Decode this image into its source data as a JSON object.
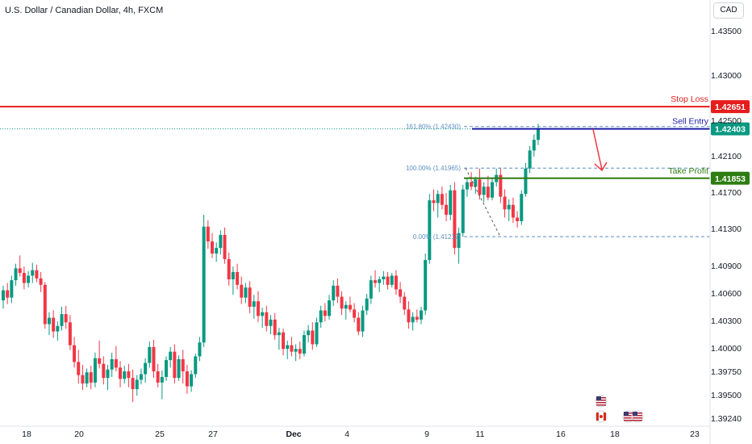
{
  "header": {
    "title": "U.S. Dollar / Canadian Dollar, 4h, FXCM",
    "currency_button": "CAD"
  },
  "colors": {
    "up": "#089981",
    "down": "#f23645",
    "stop_loss": "#e51d1d",
    "sell_entry": "#1c1ca8",
    "take_profit": "#2e7d12",
    "fib": "#5a8fc2",
    "arrow": "#f23645"
  },
  "chart_data": {
    "type": "candlestick",
    "title": "U.S. Dollar / Canadian Dollar, 4h, FXCM",
    "y_ticks": [
      "1.43500",
      "1.43000",
      "1.42500",
      "1.42100",
      "1.41700",
      "1.41300",
      "1.40900",
      "1.40600",
      "1.40300",
      "1.40000",
      "1.39750",
      "1.39500",
      "1.39240"
    ],
    "y_tick_values": [
      1.435,
      1.43,
      1.425,
      1.421,
      1.417,
      1.413,
      1.409,
      1.406,
      1.403,
      1.4,
      1.3975,
      1.395,
      1.3924
    ],
    "x_ticks": [
      "18",
      "20",
      "25",
      "27",
      "Dec",
      "4",
      "9",
      "11",
      "16",
      "18",
      "23"
    ],
    "levels": [
      {
        "name": "stop_loss",
        "label": "Stop Loss",
        "price": 1.42651,
        "value_label": "1.42651"
      },
      {
        "name": "sell_entry",
        "label": "Sell Entry",
        "price": 1.42403,
        "value_label": "1.42403"
      },
      {
        "name": "take_profit",
        "label": "Take Profit",
        "price": 1.41853,
        "value_label": "1.41853"
      }
    ],
    "fib_levels": [
      {
        "label": "161.80% (1.42430)",
        "price": 1.4243
      },
      {
        "label": "100.00% (1.41965)",
        "price": 1.41965
      },
      {
        "label": "0.00% (1.41212)",
        "price": 1.41212
      }
    ],
    "candles": [
      [
        1.4052,
        1.4068,
        1.4043,
        1.4063
      ],
      [
        1.4063,
        1.4071,
        1.4048,
        1.4055
      ],
      [
        1.4055,
        1.4079,
        1.4049,
        1.4074
      ],
      [
        1.4074,
        1.4092,
        1.4068,
        1.4087
      ],
      [
        1.4087,
        1.4101,
        1.4078,
        1.4082
      ],
      [
        1.4082,
        1.4089,
        1.4064,
        1.4071
      ],
      [
        1.4071,
        1.4084,
        1.4066,
        1.4079
      ],
      [
        1.4079,
        1.4093,
        1.4071,
        1.4085
      ],
      [
        1.4085,
        1.4091,
        1.4072,
        1.4076
      ],
      [
        1.4076,
        1.4083,
        1.4061,
        1.4069
      ],
      [
        1.4069,
        1.4072,
        1.4021,
        1.4026
      ],
      [
        1.4026,
        1.4039,
        1.4014,
        1.4033
      ],
      [
        1.4033,
        1.4041,
        1.4011,
        1.4018
      ],
      [
        1.4018,
        1.4029,
        1.4008,
        1.4024
      ],
      [
        1.4024,
        1.4045,
        1.4019,
        1.4037
      ],
      [
        1.4037,
        1.4046,
        1.4021,
        1.4028
      ],
      [
        1.4028,
        1.4036,
        1.3998,
        1.4003
      ],
      [
        1.4003,
        1.4012,
        1.3979,
        1.3985
      ],
      [
        1.3985,
        1.3998,
        1.3962,
        1.3971
      ],
      [
        1.3971,
        1.3982,
        1.3955,
        1.3962
      ],
      [
        1.3962,
        1.3978,
        1.3958,
        1.3974
      ],
      [
        1.3974,
        1.3981,
        1.3956,
        1.3963
      ],
      [
        1.3963,
        1.3995,
        1.3958,
        1.3989
      ],
      [
        1.3989,
        1.4008,
        1.3978,
        1.3983
      ],
      [
        1.3983,
        1.3991,
        1.3961,
        1.3968
      ],
      [
        1.3968,
        1.3982,
        1.3955,
        1.3977
      ],
      [
        1.3977,
        1.3995,
        1.3969,
        1.3988
      ],
      [
        1.3988,
        1.4002,
        1.3975,
        1.3979
      ],
      [
        1.3979,
        1.3986,
        1.3958,
        1.3967
      ],
      [
        1.3967,
        1.3981,
        1.3962,
        1.3975
      ],
      [
        1.3975,
        1.3983,
        1.3958,
        1.3968
      ],
      [
        1.3968,
        1.3977,
        1.3942,
        1.3956
      ],
      [
        1.3956,
        1.3971,
        1.3949,
        1.3966
      ],
      [
        1.3966,
        1.3978,
        1.3961,
        1.3972
      ],
      [
        1.3972,
        1.3989,
        1.3963,
        1.3984
      ],
      [
        1.3984,
        1.4007,
        1.3979,
        1.4001
      ],
      [
        1.4001,
        1.4009,
        1.3968,
        1.3975
      ],
      [
        1.3975,
        1.3983,
        1.3958,
        1.3963
      ],
      [
        1.3963,
        1.3976,
        1.3945,
        1.3969
      ],
      [
        1.3969,
        1.3991,
        1.3965,
        1.3987
      ],
      [
        1.3987,
        1.4001,
        1.3979,
        1.3996
      ],
      [
        1.3996,
        1.4004,
        1.3962,
        1.3968
      ],
      [
        1.3968,
        1.3992,
        1.3965,
        1.3988
      ],
      [
        1.3988,
        1.3998,
        1.3962,
        1.3975
      ],
      [
        1.3975,
        1.3982,
        1.3951,
        1.3959
      ],
      [
        1.3959,
        1.3976,
        1.3953,
        1.3972
      ],
      [
        1.3972,
        1.3994,
        1.3968,
        1.3991
      ],
      [
        1.3991,
        1.4012,
        1.3986,
        1.4006
      ],
      [
        1.4006,
        1.4145,
        1.4001,
        1.4132
      ],
      [
        1.4132,
        1.4139,
        1.4108,
        1.4116
      ],
      [
        1.4116,
        1.4125,
        1.4098,
        1.4103
      ],
      [
        1.4103,
        1.4115,
        1.4094,
        1.4109
      ],
      [
        1.4109,
        1.4128,
        1.4102,
        1.4123
      ],
      [
        1.4123,
        1.4131,
        1.4092,
        1.4097
      ],
      [
        1.4097,
        1.4104,
        1.4068,
        1.4075
      ],
      [
        1.4075,
        1.4089,
        1.4058,
        1.4083
      ],
      [
        1.4083,
        1.4092,
        1.4064,
        1.4069
      ],
      [
        1.4069,
        1.4078,
        1.4048,
        1.4055
      ],
      [
        1.4055,
        1.4071,
        1.4049,
        1.4066
      ],
      [
        1.4066,
        1.4073,
        1.4038,
        1.4045
      ],
      [
        1.4045,
        1.4058,
        1.4032,
        1.4051
      ],
      [
        1.4051,
        1.4062,
        1.4028,
        1.4035
      ],
      [
        1.4035,
        1.4044,
        1.4022,
        1.4039
      ],
      [
        1.4039,
        1.4046,
        1.4018,
        1.4024
      ],
      [
        1.4024,
        1.4036,
        1.4015,
        1.4031
      ],
      [
        1.4031,
        1.4038,
        1.4009,
        1.4014
      ],
      [
        1.4014,
        1.4022,
        1.3998,
        1.4017
      ],
      [
        1.4017,
        1.4021,
        1.3992,
        1.3999
      ],
      [
        1.3999,
        1.4008,
        1.3988,
        1.4003
      ],
      [
        1.4003,
        1.4012,
        1.3991,
        1.3996
      ],
      [
        1.3996,
        1.4004,
        1.3986,
        1.3999
      ],
      [
        1.3999,
        1.4007,
        1.3988,
        1.3994
      ],
      [
        1.3994,
        1.4019,
        1.3991,
        1.4014
      ],
      [
        1.4014,
        1.4025,
        1.4006,
        1.4019
      ],
      [
        1.4019,
        1.4028,
        1.3998,
        1.4004
      ],
      [
        1.4004,
        1.4033,
        1.4001,
        1.4028
      ],
      [
        1.4028,
        1.4046,
        1.4022,
        1.4041
      ],
      [
        1.4041,
        1.4049,
        1.4029,
        1.4035
      ],
      [
        1.4035,
        1.4058,
        1.4031,
        1.4052
      ],
      [
        1.4052,
        1.4074,
        1.4046,
        1.4068
      ],
      [
        1.4068,
        1.4076,
        1.4049,
        1.4056
      ],
      [
        1.4056,
        1.4062,
        1.4036,
        1.4043
      ],
      [
        1.4043,
        1.4051,
        1.4031,
        1.4047
      ],
      [
        1.4047,
        1.4056,
        1.4039,
        1.4042
      ],
      [
        1.4042,
        1.4049,
        1.4028,
        1.4033
      ],
      [
        1.4033,
        1.4039,
        1.4014,
        1.4018
      ],
      [
        1.4018,
        1.4046,
        1.4012,
        1.4041
      ],
      [
        1.4041,
        1.4059,
        1.4036,
        1.4054
      ],
      [
        1.4054,
        1.4079,
        1.4048,
        1.4074
      ],
      [
        1.4074,
        1.4085,
        1.4066,
        1.4071
      ],
      [
        1.4071,
        1.4078,
        1.4061,
        1.4075
      ],
      [
        1.4075,
        1.4084,
        1.4069,
        1.4078
      ],
      [
        1.4078,
        1.4083,
        1.4064,
        1.4069
      ],
      [
        1.4069,
        1.4082,
        1.4066,
        1.4079
      ],
      [
        1.4079,
        1.4085,
        1.4058,
        1.4064
      ],
      [
        1.4064,
        1.4072,
        1.4049,
        1.4056
      ],
      [
        1.4056,
        1.4061,
        1.4036,
        1.4042
      ],
      [
        1.4042,
        1.4051,
        1.4021,
        1.4028
      ],
      [
        1.4028,
        1.4039,
        1.4019,
        1.4034
      ],
      [
        1.4034,
        1.4042,
        1.4028,
        1.4031
      ],
      [
        1.4031,
        1.4045,
        1.4026,
        1.4041
      ],
      [
        1.4041,
        1.4103,
        1.4036,
        1.4096
      ],
      [
        1.4096,
        1.4168,
        1.4092,
        1.4161
      ],
      [
        1.4161,
        1.4173,
        1.4149,
        1.4158
      ],
      [
        1.4158,
        1.4172,
        1.4142,
        1.4168
      ],
      [
        1.4168,
        1.4176,
        1.4151,
        1.4156
      ],
      [
        1.4156,
        1.4169,
        1.4138,
        1.4145
      ],
      [
        1.4145,
        1.4178,
        1.4139,
        1.4172
      ],
      [
        1.4172,
        1.4181,
        1.4102,
        1.4109
      ],
      [
        1.4109,
        1.4131,
        1.4092,
        1.4125
      ],
      [
        1.4125,
        1.4178,
        1.4121,
        1.4173
      ],
      [
        1.4173,
        1.4186,
        1.4165,
        1.4181
      ],
      [
        1.4181,
        1.4192,
        1.4172,
        1.4176
      ],
      [
        1.4176,
        1.4187,
        1.4168,
        1.4184
      ],
      [
        1.4184,
        1.4196,
        1.4162,
        1.4167
      ],
      [
        1.4167,
        1.4181,
        1.4159,
        1.4176
      ],
      [
        1.4176,
        1.4188,
        1.4161,
        1.4164
      ],
      [
        1.4164,
        1.4185,
        1.4161,
        1.4181
      ],
      [
        1.4181,
        1.4196,
        1.4176,
        1.4189
      ],
      [
        1.4189,
        1.4197,
        1.4158,
        1.4165
      ],
      [
        1.4165,
        1.4173,
        1.4142,
        1.4151
      ],
      [
        1.4151,
        1.4162,
        1.4138,
        1.4156
      ],
      [
        1.4156,
        1.4164,
        1.4136,
        1.4142
      ],
      [
        1.4142,
        1.4149,
        1.4131,
        1.4138
      ],
      [
        1.4138,
        1.4172,
        1.4134,
        1.4168
      ],
      [
        1.4168,
        1.4202,
        1.4165,
        1.4196
      ],
      [
        1.4196,
        1.4221,
        1.4191,
        1.4216
      ],
      [
        1.4216,
        1.4234,
        1.4209,
        1.4228
      ],
      [
        1.4228,
        1.4246,
        1.4222,
        1.424
      ]
    ]
  }
}
